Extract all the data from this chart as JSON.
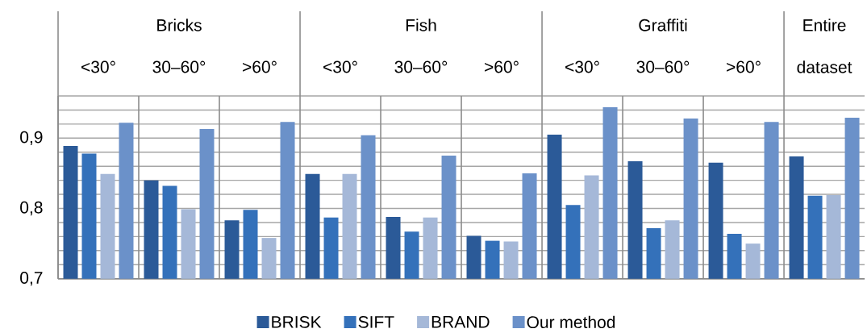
{
  "chart_data": {
    "type": "bar",
    "categories": [
      "<30°",
      "30–60°",
      ">60°",
      "<30°",
      "30–60°",
      ">60°",
      "<30°",
      "30–60°",
      ">60°",
      "Entire dataset"
    ],
    "annotations": [
      "Bricks",
      "Fish",
      "Graffiti"
    ],
    "series": [
      {
        "name": "BRISK",
        "color": "#2b5a98",
        "values": [
          0.889,
          0.84,
          0.783,
          0.849,
          0.788,
          0.761,
          0.905,
          0.867,
          0.865,
          0.874
        ]
      },
      {
        "name": "SIFT",
        "color": "#3471ba",
        "values": [
          0.878,
          0.832,
          0.798,
          0.787,
          0.767,
          0.754,
          0.805,
          0.772,
          0.764,
          0.818
        ]
      },
      {
        "name": "BRAND",
        "color": "#a5b8d8",
        "values": [
          0.849,
          0.799,
          0.758,
          0.849,
          0.787,
          0.753,
          0.847,
          0.783,
          0.75,
          0.819
        ]
      },
      {
        "name": "Our method",
        "color": "#6b91c9",
        "values": [
          0.922,
          0.913,
          0.923,
          0.904,
          0.875,
          0.85,
          0.944,
          0.928,
          0.923,
          0.929
        ]
      }
    ],
    "ylim": [
      0.7,
      0.96
    ],
    "yticks": [
      {
        "value": 0.7,
        "label": "0,7"
      },
      {
        "value": 0.72,
        "label": null
      },
      {
        "value": 0.74,
        "label": null
      },
      {
        "value": 0.76,
        "label": null
      },
      {
        "value": 0.78,
        "label": null
      },
      {
        "value": 0.8,
        "label": "0,8"
      },
      {
        "value": 0.82,
        "label": null
      },
      {
        "value": 0.84,
        "label": null
      },
      {
        "value": 0.86,
        "label": null
      },
      {
        "value": 0.88,
        "label": null
      },
      {
        "value": 0.9,
        "label": "0,9"
      },
      {
        "value": 0.92,
        "label": null
      },
      {
        "value": 0.94,
        "label": null
      },
      {
        "value": 0.96,
        "label": null
      }
    ],
    "grid": "y",
    "legend": "bottom"
  }
}
